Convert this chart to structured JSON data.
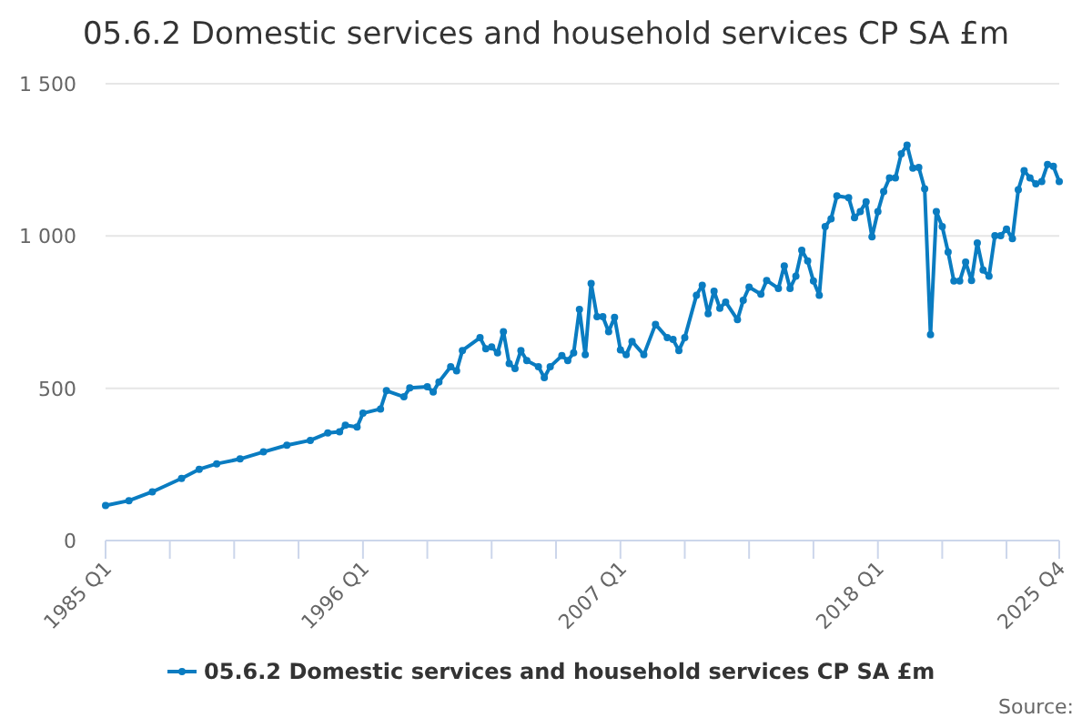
{
  "chart_data": {
    "type": "line",
    "title": "05.6.2 Domestic services and household services CP SA £m",
    "x": [
      "1985-01",
      "1986-01",
      "1987-01",
      "1988-04",
      "1989-01",
      "1989-10",
      "1990-10",
      "1991-10",
      "1992-10",
      "1993-10",
      "1994-07",
      "1995-01",
      "1995-04",
      "1995-10",
      "1996-01",
      "1996-10",
      "1997-01",
      "1997-10",
      "1998-01",
      "1998-10",
      "1999-01",
      "1999-04",
      "1999-10",
      "2000-01",
      "2000-04",
      "2001-01",
      "2001-04",
      "2001-07",
      "2001-10",
      "2002-01",
      "2002-04",
      "2002-07",
      "2002-10",
      "2003-01",
      "2003-07",
      "2003-10",
      "2004-01",
      "2004-07",
      "2004-10",
      "2005-01",
      "2005-04",
      "2005-07",
      "2005-10",
      "2006-01",
      "2006-04",
      "2006-07",
      "2006-10",
      "2007-01",
      "2007-04",
      "2007-07",
      "2008-01",
      "2008-07",
      "2009-01",
      "2009-04",
      "2009-07",
      "2009-10",
      "2010-04",
      "2010-07",
      "2010-10",
      "2011-01",
      "2011-04",
      "2011-07",
      "2012-01",
      "2012-04",
      "2012-07",
      "2013-01",
      "2013-04",
      "2013-10",
      "2014-01",
      "2014-04",
      "2014-07",
      "2014-10",
      "2015-01",
      "2015-04",
      "2015-07",
      "2015-10",
      "2016-01",
      "2016-04",
      "2016-10",
      "2017-01",
      "2017-04",
      "2017-07",
      "2017-10",
      "2018-01",
      "2018-04",
      "2018-07",
      "2018-10",
      "2019-01",
      "2019-04",
      "2019-07",
      "2019-10",
      "2020-01",
      "2020-04",
      "2020-07",
      "2020-10",
      "2021-01",
      "2021-04",
      "2021-07",
      "2021-10",
      "2022-01",
      "2022-04",
      "2022-07",
      "2022-10",
      "2023-01",
      "2023-04",
      "2023-07",
      "2023-10",
      "2024-01",
      "2024-04",
      "2024-07",
      "2024-10",
      "2025-01",
      "2025-04",
      "2025-07",
      "2025-10"
    ],
    "series": [
      {
        "name": "05.6.2 Domestic services and household services CP SA £m",
        "color": "#0a7cc1",
        "values": [
          115,
          131,
          160,
          204,
          234,
          252,
          268,
          291,
          313,
          329,
          353,
          357,
          379,
          373,
          418,
          432,
          492,
          472,
          501,
          505,
          488,
          521,
          571,
          557,
          624,
          666,
          630,
          636,
          616,
          686,
          581,
          565,
          624,
          591,
          571,
          535,
          571,
          607,
          591,
          616,
          759,
          610,
          844,
          735,
          735,
          686,
          733,
          626,
          610,
          654,
          610,
          710,
          666,
          660,
          624,
          666,
          805,
          838,
          745,
          819,
          763,
          783,
          725,
          789,
          832,
          809,
          854,
          828,
          902,
          828,
          868,
          953,
          918,
          852,
          805,
          1031,
          1056,
          1132,
          1126,
          1060,
          1080,
          1112,
          997,
          1080,
          1146,
          1191,
          1191,
          1270,
          1298,
          1223,
          1225,
          1155,
          676,
          1080,
          1031,
          947,
          852,
          852,
          914,
          854,
          977,
          888,
          868,
          1001,
          1001,
          1023,
          991,
          1152,
          1215,
          1191,
          1171,
          1179,
          1235,
          1229,
          1179
        ]
      }
    ],
    "xlim": [
      "1985-01",
      "2025-10"
    ],
    "xticks": [
      {
        "value": "1985-01",
        "label": "1985 Q1"
      },
      {
        "value": "1987-10",
        "label": null
      },
      {
        "value": "1990-07",
        "label": null
      },
      {
        "value": "1993-04",
        "label": null
      },
      {
        "value": "1996-01",
        "label": "1996 Q1"
      },
      {
        "value": "1998-10",
        "label": null
      },
      {
        "value": "2001-07",
        "label": null
      },
      {
        "value": "2004-04",
        "label": null
      },
      {
        "value": "2007-01",
        "label": "2007 Q1"
      },
      {
        "value": "2009-10",
        "label": null
      },
      {
        "value": "2012-07",
        "label": null
      },
      {
        "value": "2015-04",
        "label": null
      },
      {
        "value": "2018-01",
        "label": "2018 Q1"
      },
      {
        "value": "2020-10",
        "label": null
      },
      {
        "value": "2023-07",
        "label": null
      },
      {
        "value": "2025-10",
        "label": "2025 Q4"
      }
    ],
    "ylim": [
      0,
      1500
    ],
    "yticks": [
      0,
      500,
      {
        "value": 1000,
        "label": "1 000"
      },
      {
        "value": 1500,
        "label": "1 500"
      }
    ],
    "grid": "y",
    "legend": "bottom",
    "marker": "circle",
    "line_style": "solid",
    "annotations": [
      "Source:"
    ]
  }
}
